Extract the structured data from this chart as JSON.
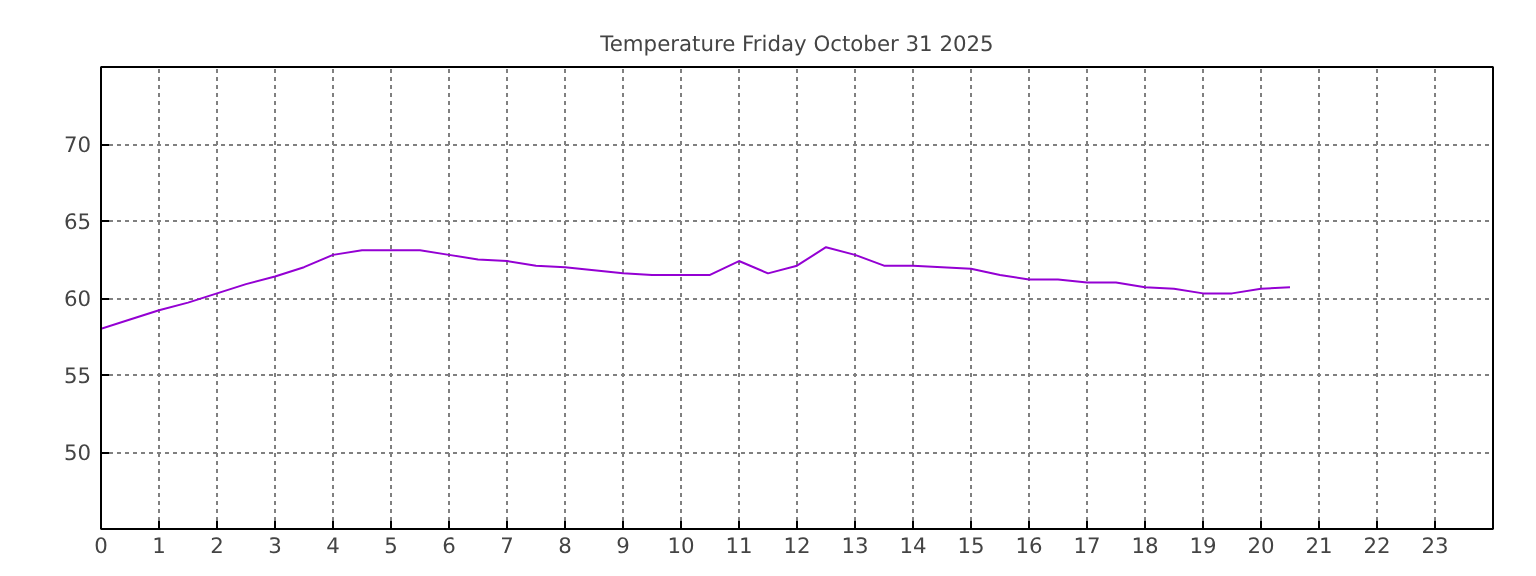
{
  "chart_data": {
    "type": "line",
    "title": "Temperature Friday October 31 2025",
    "x": [
      0,
      0.5,
      1,
      1.5,
      2,
      2.5,
      3,
      3.5,
      4,
      4.5,
      5,
      5.5,
      6,
      6.5,
      7,
      7.5,
      8,
      8.5,
      9,
      9.5,
      10,
      10.5,
      11,
      11.5,
      12,
      12.5,
      13,
      13.5,
      14,
      14.5,
      15,
      15.5,
      16,
      16.5,
      17,
      17.5,
      18,
      18.5,
      19,
      19.5,
      20,
      20.5
    ],
    "series": [
      {
        "color": "#9400d3",
        "values": [
          58.0,
          58.6,
          59.2,
          59.7,
          60.3,
          60.9,
          61.4,
          62.0,
          62.8,
          63.1,
          63.1,
          63.1,
          62.8,
          62.5,
          62.4,
          62.1,
          62.0,
          61.8,
          61.6,
          61.5,
          61.5,
          61.5,
          62.4,
          61.6,
          62.1,
          63.3,
          62.8,
          62.1,
          62.1,
          62.0,
          61.9,
          61.5,
          61.2,
          61.2,
          61.0,
          61.0,
          60.7,
          60.6,
          60.3,
          60.3,
          60.6,
          60.7
        ]
      }
    ],
    "xlim": [
      0,
      24
    ],
    "xticks": [
      0,
      1,
      2,
      3,
      4,
      5,
      6,
      7,
      8,
      9,
      10,
      11,
      12,
      13,
      14,
      15,
      16,
      17,
      18,
      19,
      20,
      21,
      22,
      23
    ],
    "ylim": [
      45,
      75
    ],
    "yticks": [
      50,
      55,
      60,
      65,
      70
    ],
    "grid": true,
    "line_style": "solid"
  }
}
